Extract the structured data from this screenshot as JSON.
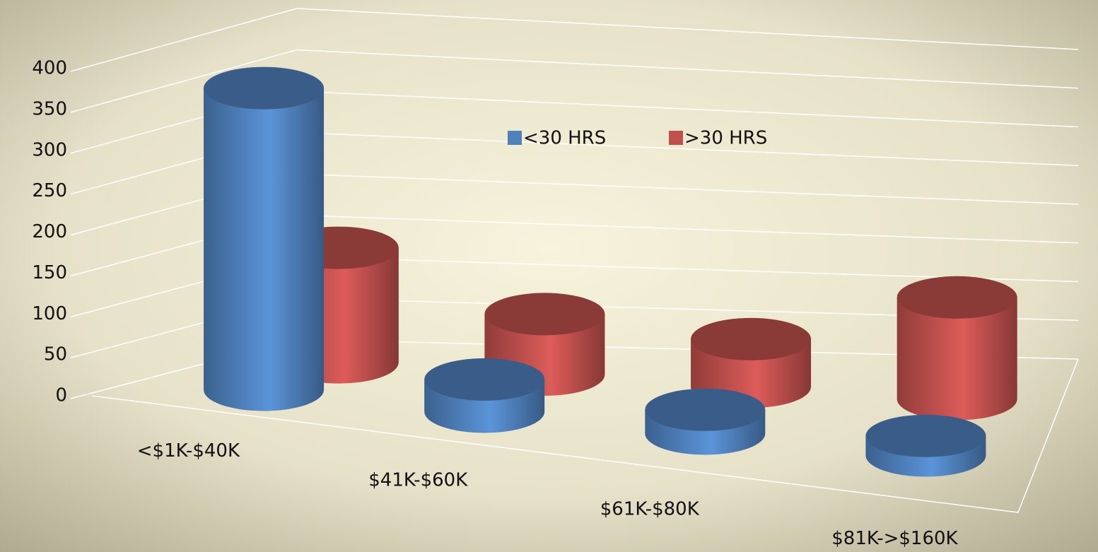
{
  "chart_data": {
    "type": "bar3d",
    "categories": [
      "<$1K-$40K",
      "$41K-$60K",
      "$61K-$80K",
      "$81K->$160K"
    ],
    "series": [
      {
        "name": "<30 HRS",
        "color": "#4f81bd",
        "values": [
          370,
          40,
          30,
          25
        ]
      },
      {
        "name": ">30 HRS",
        "color": "#c0504d",
        "values": [
          140,
          75,
          60,
          130
        ]
      }
    ],
    "ylim": [
      0,
      400
    ],
    "yticks": [
      0,
      50,
      100,
      150,
      200,
      250,
      300,
      350,
      400
    ],
    "grid": true,
    "legend": "top"
  }
}
